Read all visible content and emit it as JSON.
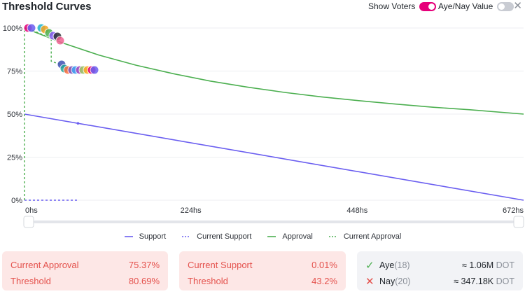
{
  "title": "Threshold Curves",
  "toggles": {
    "show_voters": {
      "label": "Show Voters",
      "on": true
    },
    "aye_nay_value": {
      "label": "Aye/Nay Value",
      "on": false
    }
  },
  "close_symbol": "✕",
  "chart_data": {
    "type": "line",
    "x_ticks": [
      "0hs",
      "224hs",
      "448hs",
      "672hs"
    ],
    "y_ticks": [
      "0%",
      "25%",
      "50%",
      "75%",
      "100%"
    ],
    "xlim": [
      0,
      672
    ],
    "ylim": [
      0,
      100
    ],
    "series": [
      {
        "name": "Support",
        "style": "solid",
        "color": "#6a5ef0",
        "x": [
          0,
          672
        ],
        "y": [
          50,
          0
        ]
      },
      {
        "name": "Current Support",
        "style": "dashed",
        "color": "#6a5ef0",
        "x": [
          0,
          0,
          72
        ],
        "y": [
          0,
          0.01,
          0.01
        ]
      },
      {
        "name": "Approval",
        "style": "solid",
        "color": "#4caf50",
        "x": [
          0,
          50,
          100,
          150,
          200,
          250,
          300,
          350,
          400,
          450,
          500,
          550,
          600,
          672
        ],
        "y": [
          100,
          91.5,
          84.3,
          78.4,
          73.5,
          69.2,
          65.7,
          62.6,
          60.0,
          57.8,
          55.8,
          54.0,
          52.5,
          50
        ]
      },
      {
        "name": "Current Approval",
        "style": "dashed",
        "color": "#4caf50",
        "x": [
          0,
          0,
          4,
          36,
          36,
          72
        ],
        "y": [
          0,
          100,
          100,
          94,
          80.7,
          75.37
        ]
      }
    ]
  },
  "legend": [
    {
      "label": "Support",
      "style": "solid",
      "color": "#6a5ef0"
    },
    {
      "label": "Current Support",
      "style": "dashed",
      "color": "#6a5ef0"
    },
    {
      "label": "Approval",
      "style": "solid",
      "color": "#4caf50"
    },
    {
      "label": "Current Approval",
      "style": "dashed",
      "color": "#4caf50"
    }
  ],
  "approval_panel": {
    "current_label": "Current Approval",
    "current_value": "75.37%",
    "threshold_label": "Threshold",
    "threshold_value": "80.69%"
  },
  "support_panel": {
    "current_label": "Current Support",
    "current_value": "0.01%",
    "threshold_label": "Threshold",
    "threshold_value": "43.2%"
  },
  "votes_panel": {
    "aye": {
      "icon": "✓",
      "label": "Aye",
      "count": "(18)",
      "approx": "≈ 1.06M",
      "unit": "DOT",
      "color": "#4caf50"
    },
    "nay": {
      "icon": "✕",
      "label": "Nay",
      "count": "(20)",
      "approx": "≈ 347.18K",
      "unit": "DOT",
      "color": "#e4524d"
    }
  },
  "colors": {
    "accent": "#e6007a",
    "support": "#6a5ef0",
    "approval": "#4caf50",
    "red_text": "#e4524d"
  }
}
